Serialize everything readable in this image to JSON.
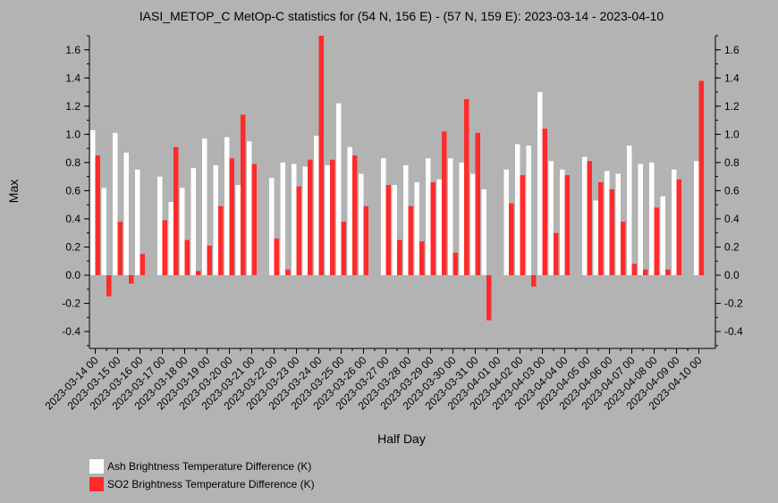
{
  "chart_data": {
    "type": "bar",
    "title": "IASI_METOP_C MetOp-C statistics for (54 N, 156 E) - (57 N, 159 E): 2023-03-14 - 2023-04-10",
    "xlabel": "Half Day",
    "ylabel": "Max",
    "ylim": [
      -0.52,
      1.7
    ],
    "yticks": [
      -0.4,
      -0.2,
      0.0,
      0.2,
      0.4,
      0.6,
      0.8,
      1.0,
      1.2,
      1.4,
      1.6
    ],
    "ytick_labels": [
      "-0.4",
      "-0.2",
      "0.0",
      "0.2",
      "0.4",
      "0.6",
      "0.8",
      "1.0",
      "1.2",
      "1.4",
      "1.6"
    ],
    "xtick_labels": [
      "2023-03-14 00",
      "2023-03-15 00",
      "2023-03-16 00",
      "2023-03-17 00",
      "2023-03-18 00",
      "2023-03-19 00",
      "2023-03-20 00",
      "2023-03-21 00",
      "2023-03-22 00",
      "2023-03-23 00",
      "2023-03-24 00",
      "2023-03-25 00",
      "2023-03-26 00",
      "2023-03-27 00",
      "2023-03-28 00",
      "2023-03-29 00",
      "2023-03-30 00",
      "2023-03-31 00",
      "2023-04-01 00",
      "2023-04-02 00",
      "2023-04-03 00",
      "2023-04-04 00",
      "2023-04-05 00",
      "2023-04-06 00",
      "2023-04-07 00",
      "2023-04-08 00",
      "2023-04-09 00",
      "2023-04-10 00"
    ],
    "series": [
      {
        "name": "Ash Brightness Temperature Difference (K)",
        "color": "#ffffff",
        "values": [
          1.03,
          0.62,
          1.01,
          0.87,
          0.75,
          null,
          0.7,
          0.52,
          0.62,
          0.76,
          0.97,
          0.78,
          0.98,
          0.64,
          0.95,
          null,
          0.69,
          0.8,
          0.79,
          0.77,
          0.99,
          0.78,
          1.22,
          0.91,
          0.72,
          null,
          0.83,
          0.64,
          0.78,
          0.66,
          0.83,
          0.68,
          0.83,
          0.8,
          0.72,
          0.61,
          null,
          0.75,
          0.93,
          0.92,
          1.3,
          0.81,
          0.75,
          null,
          0.84,
          0.53,
          0.74,
          0.72,
          0.92,
          0.79,
          0.8,
          0.56,
          0.75,
          null,
          0.81
        ]
      },
      {
        "name": "SO2 Brightness Temperature Difference (K)",
        "color": "#ff2b2b",
        "values": [
          0.85,
          -0.15,
          0.38,
          -0.06,
          0.15,
          null,
          0.39,
          0.91,
          0.25,
          0.03,
          0.21,
          0.49,
          0.83,
          1.14,
          0.79,
          null,
          0.26,
          0.04,
          0.63,
          0.82,
          1.7,
          0.82,
          0.38,
          0.85,
          0.49,
          null,
          0.64,
          0.25,
          0.49,
          0.24,
          0.66,
          1.02,
          0.16,
          1.25,
          1.01,
          -0.32,
          null,
          0.51,
          0.71,
          -0.08,
          1.04,
          0.3,
          0.71,
          null,
          0.81,
          0.66,
          0.61,
          0.38,
          0.08,
          0.04,
          0.48,
          0.04,
          0.68,
          null,
          1.38
        ]
      }
    ],
    "legend_position": "bottom-left"
  }
}
